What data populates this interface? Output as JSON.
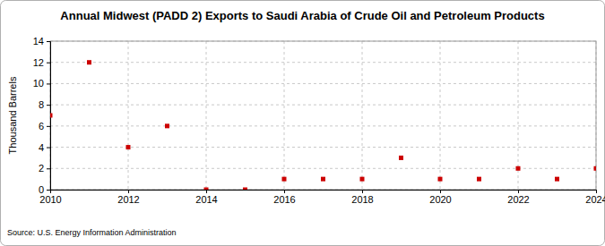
{
  "chart_data": {
    "type": "scatter",
    "title": "Annual Midwest (PADD 2) Exports to Saudi Arabia of Crude Oil and Petroleum Products",
    "y_label": "Thousand Barrels",
    "source": "Source: U.S. Energy Information Administration",
    "x": [
      2010,
      2011,
      2012,
      2013,
      2014,
      2015,
      2016,
      2017,
      2018,
      2019,
      2020,
      2021,
      2022,
      2023,
      2024
    ],
    "values": [
      7,
      12,
      4,
      6,
      0,
      0,
      1,
      1,
      1,
      3,
      1,
      1,
      2,
      1,
      2
    ],
    "color": "#cc0000",
    "marker": "square",
    "xlim": [
      2010,
      2024
    ],
    "xticks": [
      2010,
      2012,
      2014,
      2016,
      2018,
      2020,
      2022,
      2024
    ],
    "ylim": [
      0,
      14
    ],
    "yticks": [
      0,
      2,
      4,
      6,
      8,
      10,
      12,
      14
    ],
    "grid": true
  }
}
